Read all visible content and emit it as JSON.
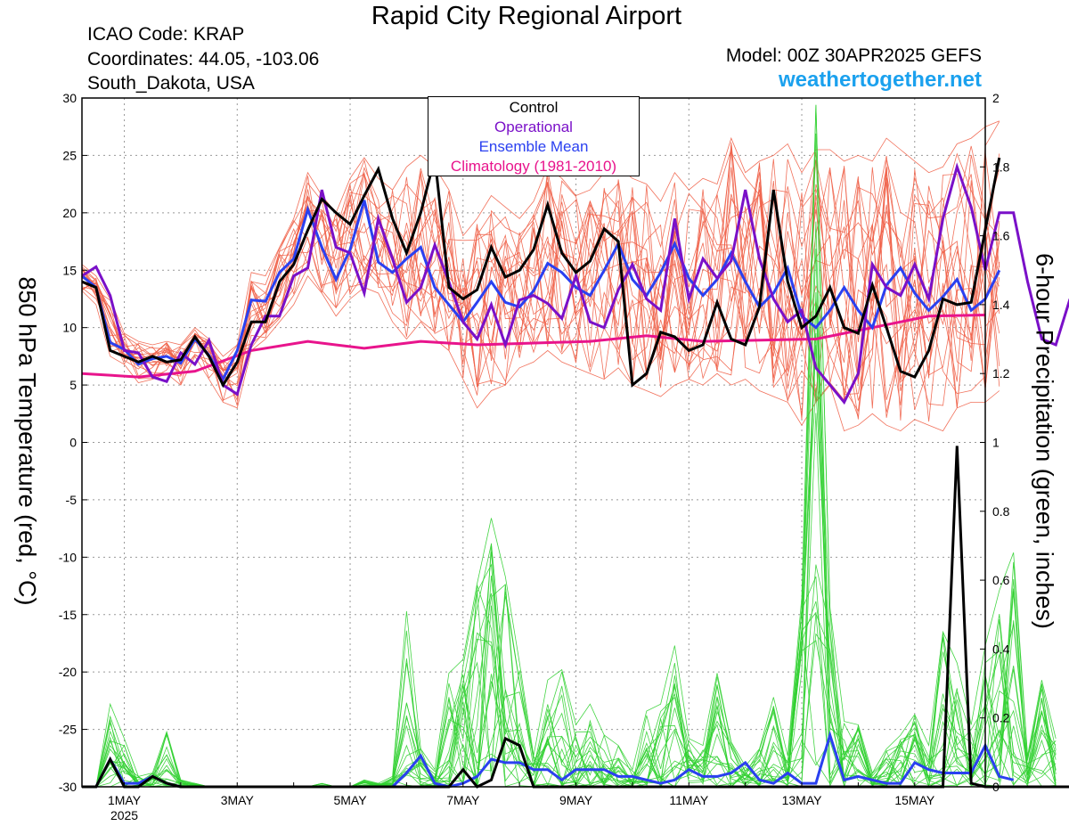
{
  "header": {
    "title": "Rapid City Regional Airport",
    "icao": "ICAO Code: KRAP",
    "coordinates": "Coordinates: 44.05, -103.06",
    "region": "South_Dakota, USA",
    "model": "Model: 00Z 30APR2025 GEFS",
    "website": "weathertogether.net"
  },
  "legend": {
    "control": "Control",
    "operational": "Operational",
    "mean": "Ensemble Mean",
    "climatology": "Climatology (1981-2010)"
  },
  "colors": {
    "members_temp": "#f06048",
    "members_precip": "#30d030",
    "control": "#000000",
    "operational": "#7a10c8",
    "mean": "#2a40f0",
    "climatology": "#e8148c",
    "website": "#1ba1ee"
  },
  "chart_data": {
    "type": "line",
    "title": "Rapid City Regional Airport",
    "x_axis": {
      "start_day": 0,
      "end_day": 16,
      "step_days": 0.25,
      "ticks": [
        {
          "day": 0.75,
          "label": "1MAY",
          "sub": "2025"
        },
        {
          "day": 2.75,
          "label": "3MAY"
        },
        {
          "day": 4.75,
          "label": "5MAY"
        },
        {
          "day": 6.75,
          "label": "7MAY"
        },
        {
          "day": 8.75,
          "label": "9MAY"
        },
        {
          "day": 10.75,
          "label": "11MAY"
        },
        {
          "day": 12.75,
          "label": "13MAY"
        },
        {
          "day": 14.75,
          "label": "15MAY"
        }
      ]
    },
    "y_left": {
      "label": "850 hPa Temperature (red, °C)",
      "min": -30,
      "max": 30,
      "step": 5,
      "ticks": [
        "30",
        "25",
        "20",
        "15",
        "10",
        "5",
        "0",
        "-5",
        "-10",
        "-15",
        "-20",
        "-25",
        "-30"
      ]
    },
    "y_right": {
      "label": "6-hour Precipitation (green, inches)",
      "min": 0,
      "max": 2,
      "step": 0.2,
      "ticks": [
        "2",
        "1.8",
        "1.6",
        "1.4",
        "1.2",
        "1",
        "0.8",
        "0.6",
        "0.4",
        "0.2",
        "0"
      ]
    },
    "grid": true,
    "temperature": {
      "control": [
        14,
        13.5,
        8,
        7.5,
        7,
        7.5,
        7,
        7.2,
        9.2,
        7.5,
        5,
        7,
        10.5,
        10.5,
        14,
        15.5,
        18.5,
        21.2,
        20,
        19,
        21.5,
        23.8,
        19.5,
        16.5,
        20,
        24.8,
        13.5,
        12.5,
        13.3,
        17,
        14.4,
        15,
        16.8,
        20.7,
        16.5,
        14.8,
        15.8,
        18.6,
        17.5,
        5,
        6,
        9.6,
        9.2,
        8,
        8.5,
        12.2,
        9,
        8.5,
        11.8,
        22,
        14,
        10,
        11,
        13.5,
        10,
        9.5,
        13.7,
        10,
        6.2,
        5.7,
        8,
        12.5,
        12,
        12.2,
        18.5,
        24.8
      ],
      "operational": [
        14.5,
        15.3,
        12.8,
        8,
        7.8,
        5.7,
        5.3,
        7.8,
        6.8,
        8.9,
        5,
        4.2,
        8.5,
        11,
        11,
        14.5,
        15.2,
        22,
        17,
        16.5,
        13,
        19.5,
        16,
        12.2,
        13.5,
        17.2,
        14,
        10.5,
        9,
        12,
        8.5,
        12.4,
        12.8,
        12.1,
        10.8,
        14.5,
        10.5,
        10,
        13.3,
        15.5,
        12.5,
        11.5,
        19.5,
        12.5,
        16,
        14.3,
        15.8,
        22,
        16,
        12.5,
        10.5,
        11.5,
        6.5,
        5,
        3.5,
        6,
        15.5,
        13.5,
        12.8,
        15.5,
        12.5,
        19.5,
        24,
        20.5,
        15,
        20,
        20,
        14,
        9,
        8.5,
        12.5
      ],
      "mean": [
        14.5,
        13.5,
        8.7,
        8.1,
        6.8,
        7.3,
        7.5,
        6.9,
        9,
        7.6,
        5.5,
        8,
        12.4,
        12.3,
        14.8,
        16,
        20.3,
        17,
        14.2,
        16.8,
        21.1,
        15.7,
        14.8,
        16,
        17,
        13.5,
        12,
        10.5,
        12.2,
        14,
        12.2,
        11.8,
        13.2,
        15.6,
        14.8,
        13.5,
        12.8,
        15,
        17.3,
        14.2,
        12.8,
        14.8,
        17.3,
        14.3,
        12.8,
        14.2,
        16.5,
        14,
        11.8,
        13,
        15.2,
        11,
        10,
        11.5,
        13.5,
        11.5,
        10,
        13.7,
        15.2,
        13,
        11.5,
        12.7,
        14.2,
        11.5,
        12.5,
        15
      ],
      "climatology": [
        [
          0,
          6
        ],
        [
          1,
          5.7
        ],
        [
          2,
          6.2
        ],
        [
          3,
          8
        ],
        [
          4,
          8.8
        ],
        [
          5,
          8.2
        ],
        [
          6,
          8.8
        ],
        [
          7,
          8.5
        ],
        [
          9,
          8.8
        ],
        [
          10,
          9.3
        ],
        [
          11,
          8.8
        ],
        [
          13,
          9
        ],
        [
          14,
          10
        ],
        [
          15,
          11
        ],
        [
          16,
          11.1
        ]
      ],
      "members_min": [
        13.2,
        12,
        7.5,
        6.8,
        5.2,
        5.5,
        6,
        5,
        7.5,
        5.5,
        3.5,
        3,
        8,
        9,
        10.5,
        12,
        14.5,
        13,
        11,
        12.5,
        13.5,
        13,
        10.5,
        9,
        10.5,
        9,
        8,
        5.5,
        3,
        4.5,
        5,
        6.5,
        7,
        8,
        7,
        6.5,
        6,
        5.5,
        6.5,
        5,
        4.5,
        4,
        5,
        5.5,
        5,
        6,
        5,
        5.5,
        4.5,
        4,
        3.5,
        1.5,
        3.5,
        5,
        1,
        1.5,
        2.5,
        1.5,
        1,
        2,
        1.5,
        1,
        3,
        3.5,
        3.5,
        4.5
      ],
      "members_max": [
        15.5,
        14.5,
        12.5,
        9.5,
        8.8,
        8.5,
        8.8,
        8.5,
        10,
        9,
        7.5,
        8.5,
        14.8,
        14.5,
        17,
        19.5,
        23.5,
        21.5,
        20,
        23,
        24.8,
        23,
        22,
        24,
        25,
        24,
        22,
        18,
        19.5,
        21.5,
        20.5,
        19.5,
        21,
        24,
        23,
        21.5,
        22,
        23.5,
        24,
        23,
        22.5,
        21,
        23.5,
        22,
        23,
        22.5,
        26.5,
        23.5,
        24.5,
        25,
        26,
        23.5,
        25.5,
        25.5,
        24.5,
        25,
        24.5,
        26.5,
        25.5,
        24.5,
        23.5,
        24,
        26,
        26.5,
        27.5,
        28
      ]
    },
    "precipitation": {
      "control": [
        0,
        0,
        0.08,
        0,
        0,
        0.03,
        0.01,
        0,
        0,
        0,
        0,
        0,
        0,
        0,
        0,
        0,
        0,
        0,
        0,
        0,
        0,
        0,
        0,
        0,
        0,
        0,
        0,
        0.05,
        0,
        0.02,
        0.14,
        0.12,
        0,
        0,
        0,
        0,
        0,
        0,
        0,
        0,
        0,
        0,
        0,
        0,
        0,
        0,
        0,
        0,
        0,
        0,
        0,
        0,
        0,
        0,
        0,
        0,
        0,
        0,
        0,
        0,
        0,
        0,
        0.99,
        0.01,
        0,
        0,
        0,
        0,
        0,
        0,
        0
      ],
      "mean": [
        0,
        0,
        0.08,
        0.01,
        0.01,
        0.03,
        0.01,
        0,
        0,
        0,
        0,
        0,
        0,
        0,
        0,
        0,
        0,
        0,
        0,
        0,
        0,
        0,
        0,
        0.04,
        0.09,
        0.01,
        0,
        0.01,
        0.03,
        0.08,
        0.07,
        0.07,
        0.05,
        0.05,
        0.02,
        0.05,
        0.05,
        0.05,
        0.03,
        0.03,
        0.02,
        0.01,
        0.02,
        0.05,
        0.03,
        0.03,
        0.04,
        0.07,
        0.02,
        0.01,
        0.04,
        0.01,
        0.01,
        0.15,
        0.02,
        0.03,
        0.02,
        0.01,
        0.01,
        0.07,
        0.05,
        0.04,
        0.04,
        0.04,
        0.12,
        0.03,
        0.02
      ],
      "members_max": [
        0,
        0,
        0.24,
        0.14,
        0.03,
        0.04,
        0.16,
        0.02,
        0.01,
        0,
        0,
        0,
        0,
        0,
        0,
        0,
        0,
        0.01,
        0,
        0,
        0.02,
        0.01,
        0.03,
        0.51,
        0.11,
        0.05,
        0.33,
        0.37,
        0.59,
        0.78,
        0.61,
        0.36,
        0.09,
        0.31,
        0.34,
        0.18,
        0.24,
        0.15,
        0.12,
        0.05,
        0.22,
        0.24,
        0.41,
        0.14,
        0.12,
        0.33,
        0.13,
        0.06,
        0.11,
        0.26,
        0.09,
        0.55,
        1.98,
        0.52,
        0.19,
        0.18,
        0.04,
        0.11,
        0.15,
        0.21,
        0.12,
        0.45,
        0.36,
        0.18,
        0.41,
        0.57,
        0.68,
        0.09,
        0.31,
        0.14
      ]
    }
  }
}
